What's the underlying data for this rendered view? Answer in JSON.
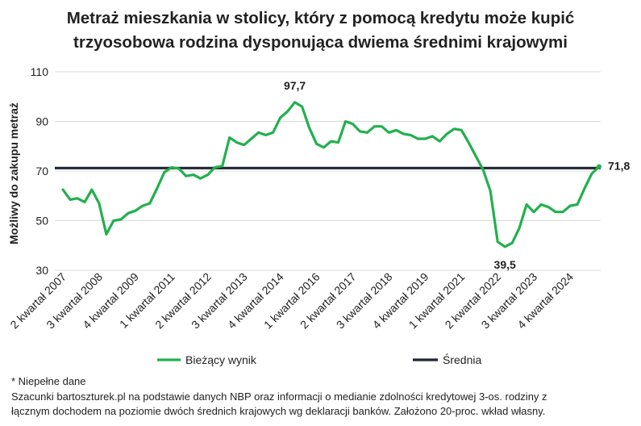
{
  "title_line1": "Metraż mieszkania w stolicy, który z pomocą kredytu może kupić",
  "title_line2": "trzyosobowa rodzina dysponująca dwiema średnimi krajowymi",
  "footnote": "* Niepełne dane",
  "source_line1": "Szacunki bartoszturek.pl na podstawie danych NBP oraz informacji o medianie zdolności kredytowej 3-os. rodziny z",
  "source_line2": "łącznym dochodem na poziomie dwóch średnich krajowych wg deklaracji banków. Założono 20-proc. wkład własny.",
  "colors": {
    "series": "#22b04e",
    "average": "#1f2533",
    "grid": "#d9d9d9",
    "text": "#222222"
  },
  "chart_data": {
    "type": "line",
    "title": "Metraż mieszkania w stolicy, który z pomocą kredytu może kupić trzyosobowa rodzina dysponująca dwiema średnimi krajowymi",
    "ylabel": "Możliwy do zakupu metraż",
    "xlabel": "",
    "ylim": [
      30,
      110
    ],
    "yticks": [
      30,
      50,
      70,
      90,
      110
    ],
    "grid": true,
    "x_tick_labels": [
      "2 kwartał 2007",
      "3 kwartał 2008",
      "4 kwartał 2009",
      "1 kwartał 2011",
      "2 kwartał 2012",
      "3 kwartał 2013",
      "4 kwartał 2014",
      "1 kwartał 2016",
      "2 kwartał 2017",
      "3 kwartał 2018",
      "4 kwartał 2019",
      "1 kwartał 2021",
      "2 kwartał 2022",
      "3 kwartał 2023",
      "4 kwartał 2024"
    ],
    "x_tick_every": 5,
    "legend": [
      "Bieżący wynik",
      "Średnia"
    ],
    "legend_position": "bottom",
    "series": [
      {
        "name": "Bieżący wynik",
        "values": [
          62.5,
          58.5,
          59.0,
          57.5,
          62.5,
          57.0,
          44.5,
          50.0,
          50.5,
          53.0,
          54.0,
          56.0,
          57.0,
          63.0,
          69.5,
          71.5,
          71.0,
          68.0,
          68.5,
          67.0,
          68.5,
          71.5,
          72.0,
          83.5,
          81.5,
          80.5,
          83.0,
          85.5,
          84.5,
          85.5,
          91.5,
          94.0,
          97.7,
          96.0,
          87.5,
          81.0,
          79.5,
          82.0,
          81.5,
          90.0,
          89.0,
          86.0,
          85.5,
          88.0,
          88.0,
          85.5,
          86.5,
          85.0,
          84.5,
          83.0,
          83.0,
          84.0,
          82.0,
          85.0,
          87.0,
          86.5,
          81.5,
          76.0,
          70.5,
          62.0,
          41.5,
          39.5,
          41.0,
          47.0,
          56.5,
          53.5,
          56.5,
          55.5,
          53.5,
          53.5,
          56.0,
          56.5,
          63.0,
          69.0,
          71.8
        ]
      },
      {
        "name": "Średnia",
        "constant": 71.2
      }
    ],
    "annotations": [
      {
        "text": "97,7",
        "index": 32,
        "value": 97.7
      },
      {
        "text": "39,5",
        "index": 61,
        "value": 39.5
      },
      {
        "text": "71,8",
        "index": 74,
        "value": 71.8
      }
    ]
  }
}
